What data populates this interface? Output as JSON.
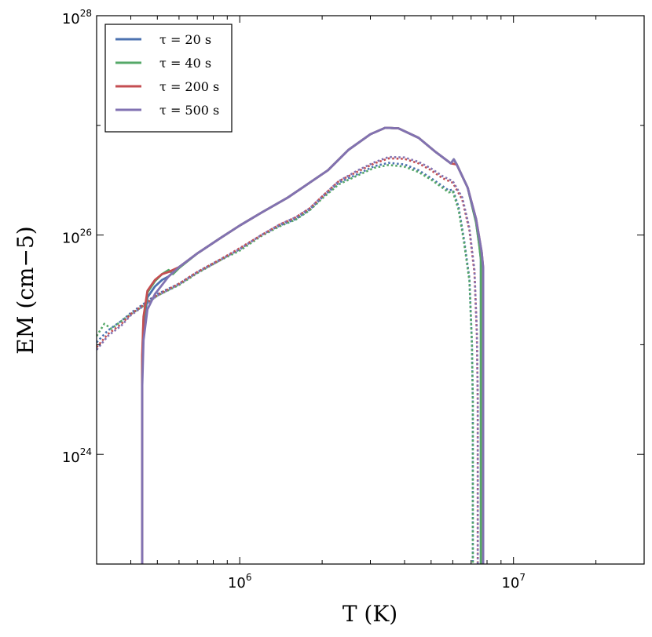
{
  "chart_data": {
    "type": "line",
    "xscale": "log",
    "yscale": "log",
    "xlim": [
      300000,
      30000000
    ],
    "ylim": [
      1e+23,
      1e+28
    ],
    "xlabel": "T (K)",
    "ylabel": "EM (cm−5)",
    "x_ticks": [
      {
        "value": 1000000,
        "base": "10",
        "exp": "6"
      },
      {
        "value": 10000000,
        "base": "10",
        "exp": "7"
      }
    ],
    "y_ticks": [
      {
        "value": 1e+24,
        "base": "10",
        "exp": "24"
      },
      {
        "value": 1e+26,
        "base": "10",
        "exp": "26"
      },
      {
        "value": 1e+28,
        "base": "10",
        "exp": "28"
      }
    ],
    "legend_position": "top-left",
    "series": [
      {
        "name": "τ = 20 s",
        "tau": "20",
        "color": "#4c72b0",
        "solid": {
          "x": [
            440000,
            440000,
            445000,
            460000,
            490000,
            520000,
            550000,
            600000,
            700000,
            850000,
            1000000,
            1200000,
            1500000,
            1800000,
            2100000,
            2500000,
            3000000,
            3400000,
            3800000,
            4500000,
            5200000,
            5900000,
            6050000,
            6200000,
            6800000,
            7300000,
            7500000,
            7600000,
            7600000
          ],
          "y": [
            1e+23,
            6e+24,
            1.5e+25,
            2.7e+25,
            3.4e+25,
            3.9e+25,
            4.2e+25,
            5.1e+25,
            6.8e+25,
            9.4e+25,
            1.22e+26,
            1.6e+26,
            2.2e+26,
            3e+26,
            3.9e+26,
            6e+26,
            8.3e+26,
            9.5e+26,
            9.4e+26,
            7.7e+26,
            5.7e+26,
            4.5e+26,
            4.9e+26,
            4.4e+26,
            2.7e+26,
            1.3e+26,
            8e+25,
            6e+25,
            1e+23
          ]
        },
        "dotted": {
          "x": [
            300000,
            330000,
            370000,
            400000,
            450000,
            500000,
            600000,
            700000,
            850000,
            1000000,
            1200000,
            1400000,
            1600000,
            1800000,
            2000000,
            2300000,
            2700000,
            3100000,
            3500000,
            4000000,
            4500000,
            5000000,
            5500000,
            5800000,
            6000000,
            6300000,
            6600000,
            6900000,
            7050000,
            7100000,
            7100000
          ],
          "y": [
            1.05e+25,
            1.35e+25,
            1.65e+25,
            1.95e+25,
            2.4e+25,
            2.9e+25,
            3.6e+25,
            4.6e+25,
            6e+25,
            7.4e+25,
            1e+26,
            1.22e+26,
            1.4e+26,
            1.7e+26,
            2.2e+26,
            3e+26,
            3.6e+26,
            4.25e+26,
            4.55e+26,
            4.4e+26,
            3.9e+26,
            3.3e+26,
            2.8e+26,
            2.55e+26,
            2.6e+26,
            1.8e+26,
            9e+25,
            4e+25,
            1e+25,
            3e+24,
            1e+23
          ]
        }
      },
      {
        "name": "τ = 40 s",
        "tau": "40",
        "color": "#55a868",
        "solid": {
          "x": [
            440000,
            440000,
            445000,
            460000,
            490000,
            520000,
            550000,
            570000,
            600000,
            700000,
            850000,
            1000000,
            1200000,
            1500000,
            1800000,
            2100000,
            2500000,
            3000000,
            3400000,
            3800000,
            4500000,
            5200000,
            5900000,
            6050000,
            6200000,
            6800000,
            7300000,
            7500000,
            7600000,
            7600000
          ],
          "y": [
            1e+23,
            7e+24,
            1.7e+25,
            3e+25,
            3.8e+25,
            4.4e+25,
            4.8e+25,
            4.4e+25,
            5e+25,
            6.8e+25,
            9.4e+25,
            1.22e+26,
            1.6e+26,
            2.2e+26,
            3e+26,
            3.9e+26,
            6e+26,
            8.3e+26,
            9.5e+26,
            9.4e+26,
            7.7e+26,
            5.7e+26,
            4.5e+26,
            4.9e+26,
            4.4e+26,
            2.7e+26,
            1.3e+26,
            8e+25,
            6e+25,
            1e+23
          ]
        },
        "dotted": {
          "x": [
            300000,
            320000,
            340000,
            370000,
            400000,
            450000,
            500000,
            600000,
            700000,
            850000,
            1000000,
            1200000,
            1400000,
            1600000,
            1800000,
            2000000,
            2300000,
            2700000,
            3100000,
            3500000,
            4000000,
            4500000,
            5000000,
            5500000,
            5800000,
            6000000,
            6300000,
            6600000,
            6900000,
            7050000,
            7100000,
            7100000
          ],
          "y": [
            1.2e+25,
            1.55e+25,
            1.4e+25,
            1.65e+25,
            1.9e+25,
            2.3e+25,
            2.8e+25,
            3.5e+25,
            4.5e+25,
            5.9e+25,
            7.2e+25,
            9.8e+25,
            1.2e+26,
            1.38e+26,
            1.68e+26,
            2.15e+26,
            2.9e+26,
            3.5e+26,
            4.1e+26,
            4.35e+26,
            4.2e+26,
            3.75e+26,
            3.2e+26,
            2.7e+26,
            2.45e+26,
            2.5e+26,
            1.7e+26,
            8.5e+25,
            3.8e+25,
            1e+25,
            3e+24,
            1e+23
          ]
        }
      },
      {
        "name": "τ = 200 s",
        "tau": "200",
        "color": "#c44e52",
        "solid": {
          "x": [
            440000,
            440000,
            445000,
            460000,
            490000,
            520000,
            550000,
            600000,
            700000,
            850000,
            1000000,
            1200000,
            1500000,
            1800000,
            2100000,
            2500000,
            3000000,
            3400000,
            3800000,
            4500000,
            5200000,
            5900000,
            6200000,
            6800000,
            7300000,
            7650000,
            7750000,
            7750000
          ],
          "y": [
            1e+23,
            8e+24,
            1.8e+25,
            3.1e+25,
            3.9e+25,
            4.4e+25,
            4.6e+25,
            5.1e+25,
            6.8e+25,
            9.4e+25,
            1.22e+26,
            1.6e+26,
            2.2e+26,
            3e+26,
            3.9e+26,
            6e+26,
            8.3e+26,
            9.5e+26,
            9.4e+26,
            7.7e+26,
            5.7e+26,
            4.5e+26,
            4.4e+26,
            2.7e+26,
            1.4e+26,
            7e+25,
            5e+25,
            1e+23
          ]
        },
        "dotted": {
          "x": [
            300000,
            330000,
            370000,
            400000,
            450000,
            500000,
            600000,
            700000,
            850000,
            1000000,
            1200000,
            1400000,
            1600000,
            1800000,
            2000000,
            2300000,
            2700000,
            3100000,
            3500000,
            4000000,
            4500000,
            5000000,
            5500000,
            6000000,
            6500000,
            6900000,
            7200000,
            7350000,
            7400000,
            7400000
          ],
          "y": [
            9.5e+24,
            1.25e+25,
            1.55e+25,
            1.9e+25,
            2.35e+25,
            2.85e+25,
            3.6e+25,
            4.6e+25,
            6e+25,
            7.6e+25,
            1e+26,
            1.25e+26,
            1.45e+26,
            1.75e+26,
            2.25e+26,
            3.1e+26,
            3.8e+26,
            4.5e+26,
            5e+26,
            4.95e+26,
            4.5e+26,
            3.9e+26,
            3.3e+26,
            3e+26,
            2.1e+26,
            1.1e+26,
            4.5e+25,
            1.2e+25,
            3e+24,
            1e+23
          ]
        }
      },
      {
        "name": "τ = 500 s",
        "tau": "500",
        "color": "#8172b2",
        "solid": {
          "x": [
            440000,
            440000,
            445000,
            460000,
            490000,
            520000,
            550000,
            600000,
            700000,
            850000,
            1000000,
            1200000,
            1500000,
            1800000,
            2100000,
            2500000,
            3000000,
            3400000,
            3800000,
            4500000,
            5200000,
            5900000,
            6050000,
            6200000,
            6800000,
            7300000,
            7650000,
            7750000,
            7750000
          ],
          "y": [
            1e+23,
            4e+24,
            1.1e+25,
            2.1e+25,
            2.9e+25,
            3.5e+25,
            4.2e+25,
            5.1e+25,
            6.8e+25,
            9.4e+25,
            1.22e+26,
            1.6e+26,
            2.2e+26,
            3e+26,
            3.9e+26,
            6e+26,
            8.3e+26,
            9.5e+26,
            9.4e+26,
            7.7e+26,
            5.7e+26,
            4.5e+26,
            4.9e+26,
            4.4e+26,
            2.7e+26,
            1.4e+26,
            7e+25,
            5e+25,
            1e+23
          ]
        },
        "dotted": {
          "x": [
            300000,
            330000,
            370000,
            400000,
            450000,
            500000,
            600000,
            700000,
            850000,
            1000000,
            1200000,
            1400000,
            1600000,
            1800000,
            2000000,
            2300000,
            2700000,
            3100000,
            3500000,
            4000000,
            4500000,
            5000000,
            5500000,
            6000000,
            6500000,
            6900000,
            7200000,
            7350000,
            7400000,
            7400000
          ],
          "y": [
            9e+24,
            1.2e+25,
            1.5e+25,
            1.85e+25,
            2.3e+25,
            2.8e+25,
            3.55e+25,
            4.55e+25,
            5.9e+25,
            7.5e+25,
            1e+26,
            1.25e+26,
            1.45e+26,
            1.75e+26,
            2.25e+26,
            3.1e+26,
            3.9e+26,
            4.6e+26,
            5.15e+26,
            5.1e+26,
            4.65e+26,
            4.05e+26,
            3.45e+26,
            3.1e+26,
            2.2e+26,
            1.15e+26,
            4.8e+25,
            1.3e+25,
            3e+24,
            1e+23
          ]
        }
      }
    ]
  }
}
